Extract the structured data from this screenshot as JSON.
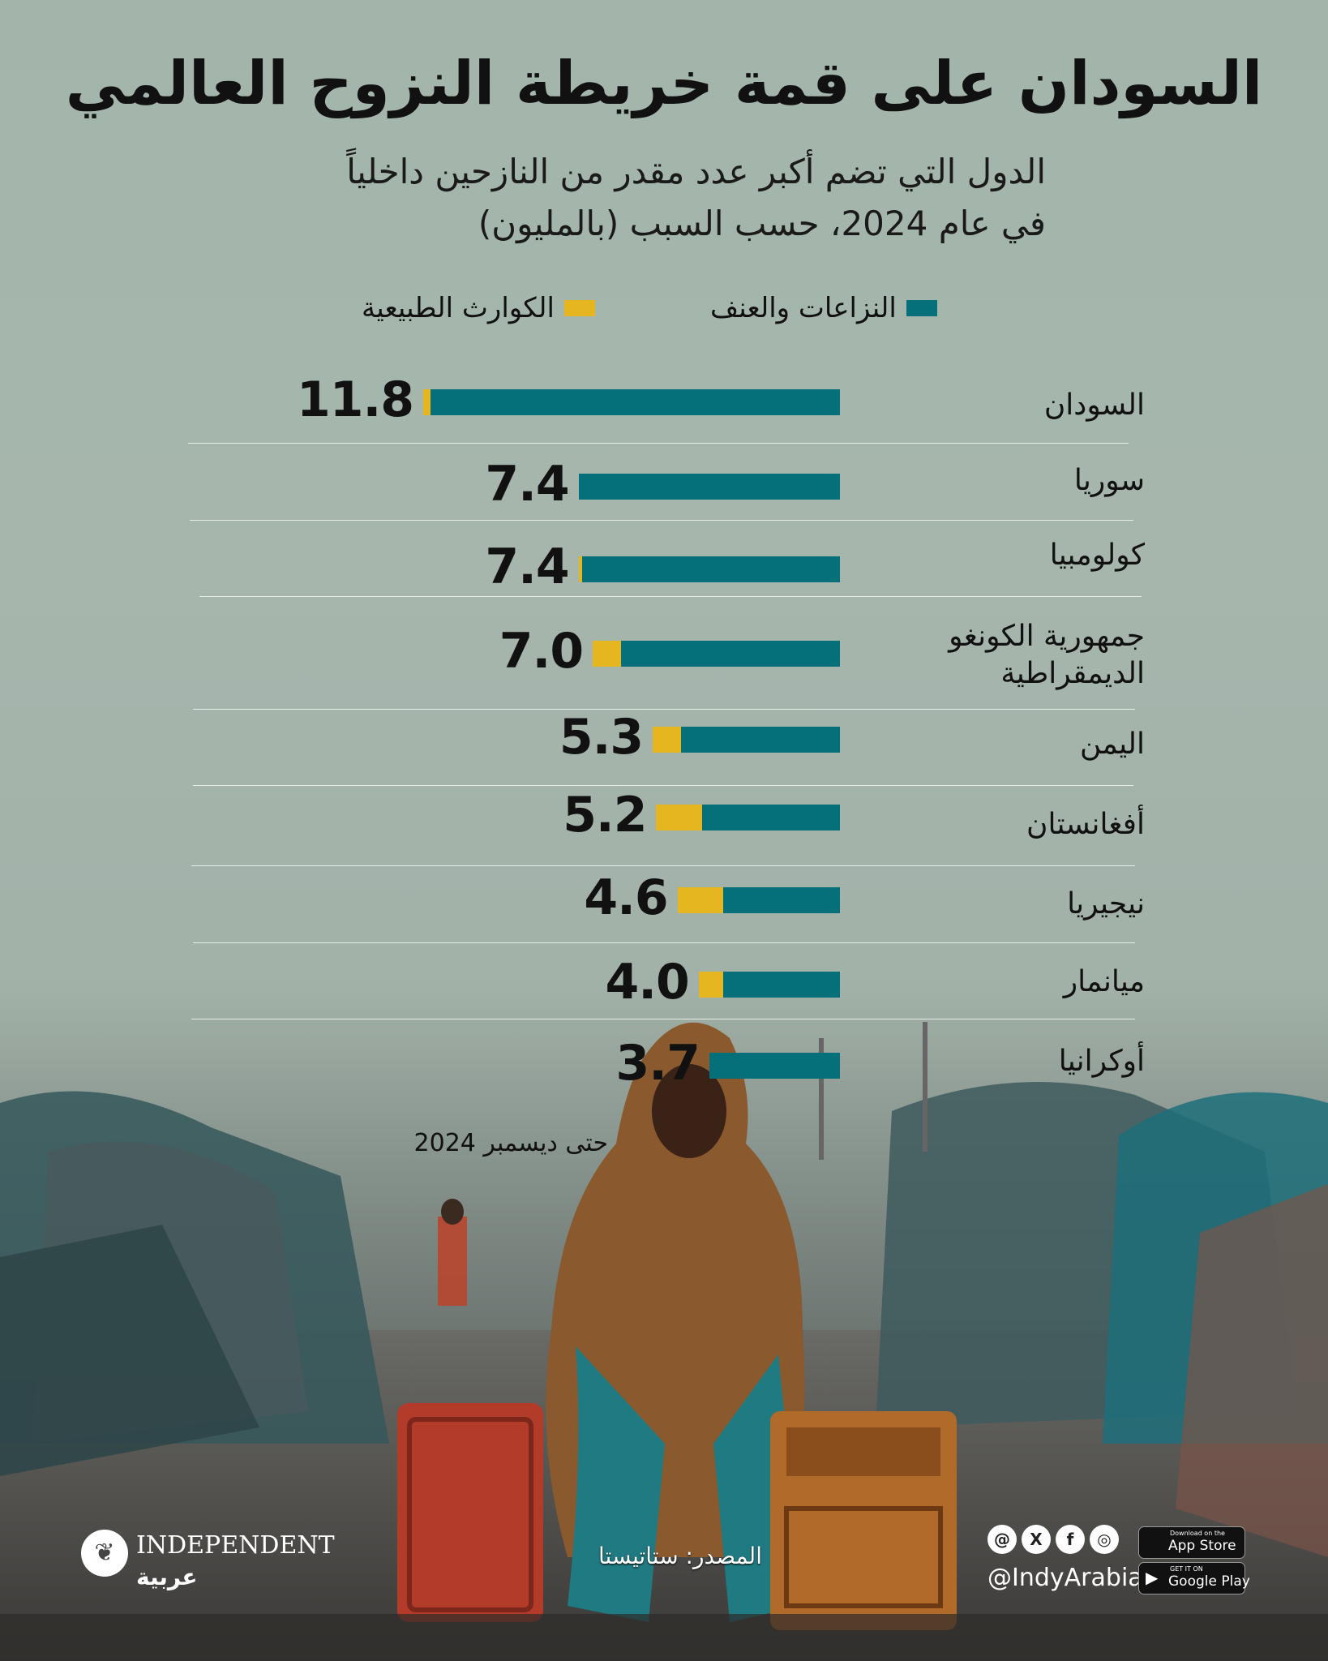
{
  "header": {
    "title": "السودان على قمة خريطة النزوح العالمي",
    "subtitle_line1": "الدول التي تضم أكبر عدد مقدر من النازحين داخلياً",
    "subtitle_line2": "في عام 2024، حسب السبب (بالمليون)"
  },
  "chart_data": {
    "type": "bar",
    "orientation": "horizontal",
    "stacked": true,
    "categories": [
      "السودان",
      "سوريا",
      "كولومبيا",
      "جمهورية الكونغو الديمقراطية",
      "اليمن",
      "أفغانستان",
      "نيجيريا",
      "ميانمار",
      "أوكرانيا"
    ],
    "category_lines": [
      [
        "السودان"
      ],
      [
        "سوريا"
      ],
      [
        "كولومبيا"
      ],
      [
        "جمهورية الكونغو",
        "الديمقراطية"
      ],
      [
        "اليمن"
      ],
      [
        "أفغانستان"
      ],
      [
        "نيجيريا"
      ],
      [
        "ميانمار"
      ],
      [
        "أوكرانيا"
      ]
    ],
    "totals": [
      11.8,
      7.4,
      7.4,
      7.0,
      5.3,
      5.2,
      4.6,
      4.0,
      3.7
    ],
    "total_labels": [
      "11.8",
      "7.4",
      "7.4",
      "7.0",
      "5.3",
      "5.2",
      "4.6",
      "4.0",
      "3.7"
    ],
    "series": [
      {
        "name": "النزاعات والعنف",
        "color": "#05707a",
        "values": [
          11.6,
          7.4,
          7.3,
          6.2,
          4.5,
          3.9,
          3.3,
          3.3,
          3.7
        ]
      },
      {
        "name": "الكوارث الطبيعية",
        "color": "#e5b61f",
        "values": [
          0.2,
          0.0,
          0.1,
          0.8,
          0.8,
          1.3,
          1.3,
          0.7,
          0.0
        ]
      }
    ],
    "xlim": [
      0,
      11.8
    ],
    "legend": "top",
    "grid": false,
    "note": "حتى ديسمبر 2024"
  },
  "footer": {
    "source": "المصدر: ستاتيستا",
    "brand_name": "INDEPENDENT",
    "brand_sub": "عربية",
    "handle": "@IndyArabia",
    "social_icons": [
      "threads-icon",
      "x-icon",
      "facebook-icon",
      "instagram-icon"
    ],
    "app_store_small": "Download on the",
    "app_store_big": "App Store",
    "google_play_small": "GET IT ON",
    "google_play_big": "Google Play"
  }
}
